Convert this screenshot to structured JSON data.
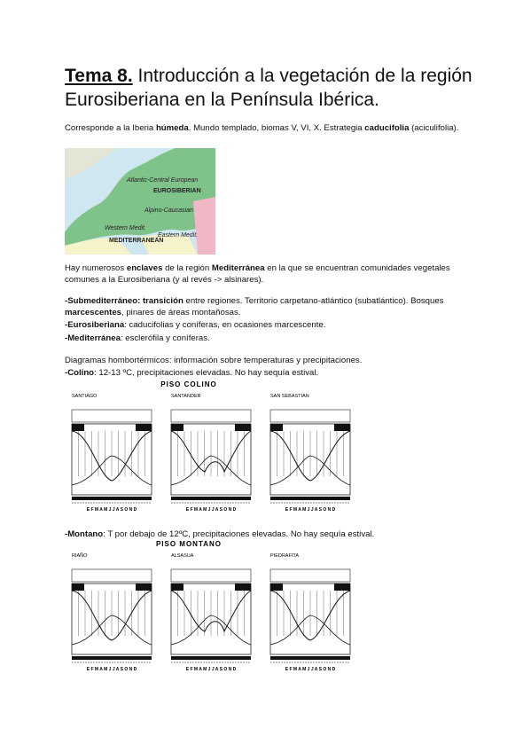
{
  "title": {
    "number": "Tema 8.",
    "text": "Introducción a la vegetación de la región Eurosiberiana en la Península Ibérica."
  },
  "paragraphs": [
    {
      "segments": [
        {
          "text": "Corresponde a la Iberia ",
          "bold": false
        },
        {
          "text": "húmeda",
          "bold": true
        },
        {
          "text": ". Mundo templado, biomas V, VI, X. Estrategia ",
          "bold": false
        },
        {
          "text": "caducifolia",
          "bold": true
        },
        {
          "text": " (aciculifolia).",
          "bold": false
        }
      ]
    },
    {
      "segments": [
        {
          "text": "Hay numerosos ",
          "bold": false
        },
        {
          "text": "enclaves",
          "bold": true
        },
        {
          "text": " de la región ",
          "bold": false
        },
        {
          "text": "Mediterránea",
          "bold": true
        },
        {
          "text": " en la que se encuentran comunidades vegetales comunes a la Eurosiberiana (y al revés -> alsinares).",
          "bold": false
        }
      ]
    },
    {
      "segments": [
        {
          "text": "-Submediterráneo: transición",
          "bold": true
        },
        {
          "text": " entre regiones. Territorio carpetano-atlántico (subatlántico). Bosques ",
          "bold": false
        },
        {
          "text": "marcescentes",
          "bold": true
        },
        {
          "text": ", pinares de áreas montañosas.",
          "bold": false
        }
      ]
    },
    {
      "segments": [
        {
          "text": "-Eurosiberiana",
          "bold": true
        },
        {
          "text": ": caducifolias y coníferas, en ocasiones marcescente.",
          "bold": false
        }
      ]
    },
    {
      "segments": [
        {
          "text": "-Mediterránea",
          "bold": true
        },
        {
          "text": ": esclerófila y coníferas.",
          "bold": false
        }
      ]
    },
    {
      "segments": [
        {
          "text": "Diagramas hombortérmicos: información sobre temperaturas y precipitaciones.",
          "bold": false
        }
      ]
    },
    {
      "segments": [
        {
          "text": "-Colino",
          "bold": true
        },
        {
          "text": ": 12-13 ºC, precipitaciones elevadas. No hay sequía estival.",
          "bold": false
        }
      ]
    },
    {
      "segments": [
        {
          "text": "-Montano",
          "bold": true
        },
        {
          "text": ": T por debajo de 12ºC, precipitaciones elevadas. No hay sequía estival.",
          "bold": false
        }
      ]
    }
  ],
  "map": {
    "labels": [
      "Atlantic-Central European",
      "EUROSIBERIAN",
      "Alpino-Caucasian",
      "Western Medit.",
      "Eastern Medit.",
      "MEDITERRANEAN"
    ]
  },
  "diagram_groups": [
    {
      "heading": "PISO COLINO",
      "stations": [
        "SANTIAGO",
        "SANTANDER",
        "SAN SEBASTIAN"
      ],
      "months": "E F M A M J J A S O N D"
    },
    {
      "heading": "PISO MONTANO",
      "stations": [
        "RIAÑO",
        "ALSASUA",
        "PIEDRAFITA"
      ],
      "months": "E F M A M J J A S O N D"
    }
  ]
}
